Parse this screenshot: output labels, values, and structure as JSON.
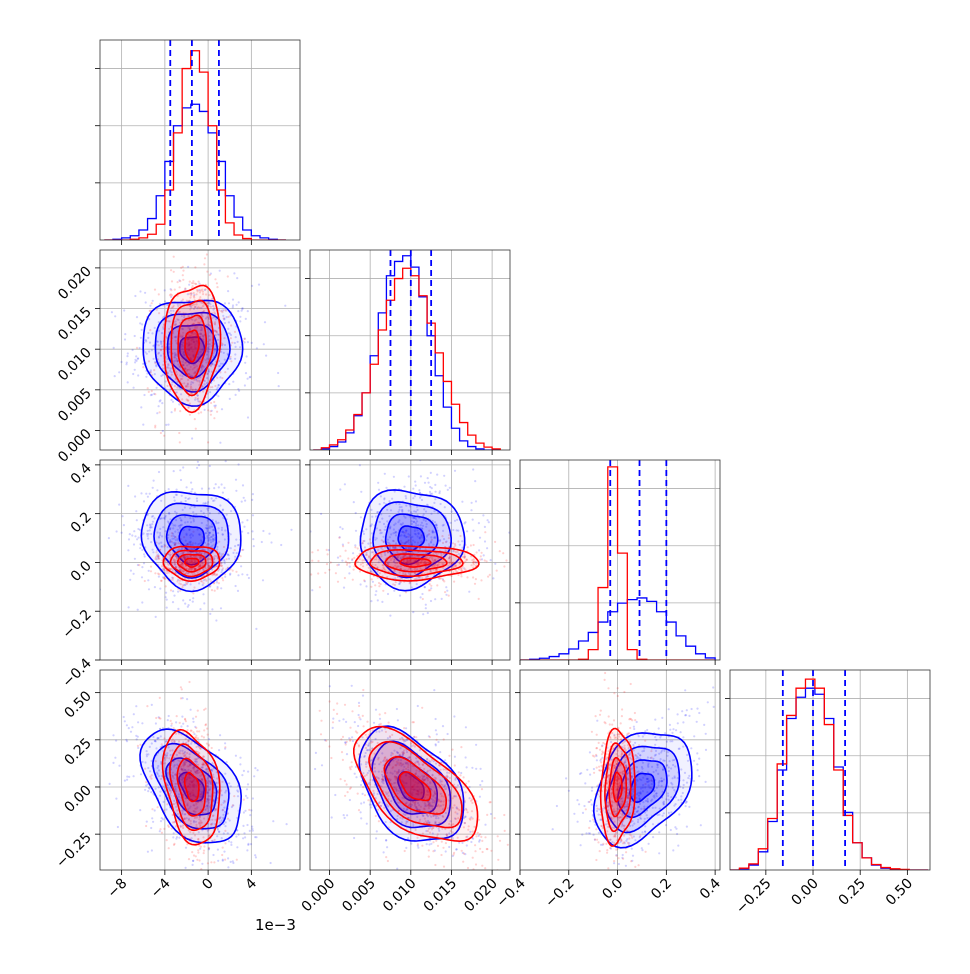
{
  "figure": {
    "type": "corner-plot",
    "offset_label": "1e−3"
  },
  "colors": {
    "series_a": "#0000ff",
    "series_b": "#ff0000",
    "grid": "#b0b0b0",
    "axis": "#000000"
  },
  "axes_params": [
    {
      "ticks": [
        -8,
        -4,
        0,
        4
      ],
      "tick_labels": [
        "−8",
        "−4",
        "0",
        "4"
      ],
      "range": [
        -10,
        8.5
      ]
    },
    {
      "ticks": [
        0.0,
        0.005,
        0.01,
        0.015,
        0.02
      ],
      "tick_labels": [
        "0.000",
        "0.005",
        "0.010",
        "0.015",
        "0.020"
      ],
      "range": [
        -0.0024,
        0.0222
      ]
    },
    {
      "ticks": [
        -0.4,
        -0.2,
        0.0,
        0.2,
        0.4
      ],
      "tick_labels": [
        "−0.4",
        "−0.2",
        "0.0",
        "0.2",
        "0.4"
      ],
      "range": [
        -0.4,
        0.42
      ]
    },
    {
      "ticks": [
        -0.25,
        0.0,
        0.25,
        0.5
      ],
      "tick_labels": [
        "−0.25",
        "0.00",
        "0.25",
        "0.50"
      ],
      "range": [
        -0.44,
        0.62
      ]
    }
  ],
  "chart_data": {
    "type": "corner",
    "series": [
      {
        "name": "",
        "color": "#0000ff",
        "means": [
          -1.5,
          0.01,
          0.1,
          0.0
        ],
        "stds": [
          2.3,
          0.0032,
          0.1,
          0.15
        ],
        "quantiles": [
          [
            -3.5,
            -1.5,
            1.0
          ],
          [
            0.0075,
            0.01,
            0.0125
          ],
          [
            -0.03,
            0.09,
            0.2
          ],
          [
            -0.16,
            0.0,
            0.17
          ]
        ],
        "correlations": {
          "1-0": 0.0,
          "2-0": -0.05,
          "2-1": 0.0,
          "3-0": -0.45,
          "3-1": -0.4,
          "3-2": 0.35
        }
      },
      {
        "name": "",
        "color": "#ff0000",
        "means": [
          -1.5,
          0.0105,
          0.0,
          0.0
        ],
        "stds": [
          1.3,
          0.0038,
          0.035,
          0.15
        ],
        "correlations": {
          "1-0": 0.1,
          "2-0": 0.0,
          "2-1": 0.0,
          "3-0": -0.3,
          "3-1": -0.6,
          "3-2": 0.1
        }
      }
    ],
    "histograms": {
      "param_0": {
        "bin_edges": [
          -9.6,
          -8.8,
          -8.0,
          -7.2,
          -6.4,
          -5.6,
          -4.8,
          -4.0,
          -3.2,
          -2.4,
          -1.6,
          -0.8,
          0.0,
          0.8,
          1.6,
          2.4,
          3.2,
          4.0,
          4.8,
          5.6,
          6.4,
          7.2
        ],
        "series_a": [
          0,
          1,
          3,
          6,
          14,
          30,
          62,
          110,
          160,
          185,
          190,
          180,
          150,
          110,
          62,
          32,
          14,
          6,
          3,
          1,
          0
        ],
        "series_b": [
          0,
          0,
          0,
          1,
          3,
          8,
          22,
          70,
          150,
          240,
          265,
          235,
          160,
          70,
          24,
          7,
          2,
          0,
          0,
          0,
          0
        ]
      },
      "param_1": {
        "bin_edges": [
          -0.002,
          -0.001,
          0.0,
          0.001,
          0.002,
          0.003,
          0.004,
          0.005,
          0.006,
          0.007,
          0.008,
          0.009,
          0.01,
          0.011,
          0.012,
          0.013,
          0.014,
          0.015,
          0.016,
          0.017,
          0.018,
          0.019,
          0.02,
          0.021
        ],
        "series_a": [
          0,
          2,
          6,
          14,
          30,
          60,
          100,
          165,
          240,
          305,
          330,
          340,
          320,
          268,
          200,
          130,
          75,
          38,
          16,
          6,
          2,
          0,
          0
        ],
        "series_b": [
          0,
          4,
          9,
          18,
          35,
          62,
          100,
          150,
          210,
          262,
          300,
          318,
          305,
          270,
          222,
          170,
          120,
          80,
          48,
          26,
          12,
          5,
          2
        ]
      },
      "param_2": {
        "bin_edges": [
          -0.4,
          -0.36,
          -0.32,
          -0.28,
          -0.24,
          -0.2,
          -0.16,
          -0.12,
          -0.08,
          -0.04,
          0.0,
          0.04,
          0.08,
          0.12,
          0.16,
          0.2,
          0.24,
          0.28,
          0.32,
          0.36,
          0.4
        ],
        "series_a": [
          0,
          2,
          5,
          10,
          18,
          32,
          55,
          80,
          110,
          140,
          165,
          175,
          180,
          170,
          140,
          110,
          70,
          40,
          18,
          6
        ],
        "series_b": [
          0,
          0,
          0,
          0,
          0,
          0,
          2,
          30,
          210,
          560,
          310,
          30,
          2,
          0,
          0,
          0,
          0,
          0,
          0,
          0
        ]
      },
      "param_3": {
        "bin_edges": [
          -0.44,
          -0.39,
          -0.34,
          -0.29,
          -0.24,
          -0.19,
          -0.14,
          -0.09,
          -0.04,
          0.01,
          0.06,
          0.11,
          0.16,
          0.21,
          0.26,
          0.31,
          0.36,
          0.41,
          0.46,
          0.51,
          0.56,
          0.61
        ],
        "series_a": [
          0,
          2,
          8,
          30,
          80,
          165,
          250,
          285,
          300,
          290,
          250,
          170,
          95,
          45,
          20,
          8,
          3,
          1,
          0,
          0,
          0
        ],
        "series_b": [
          0,
          3,
          10,
          35,
          85,
          175,
          255,
          300,
          315,
          300,
          240,
          165,
          90,
          45,
          20,
          9,
          4,
          2,
          1,
          0,
          0
        ]
      }
    },
    "grid": true
  }
}
